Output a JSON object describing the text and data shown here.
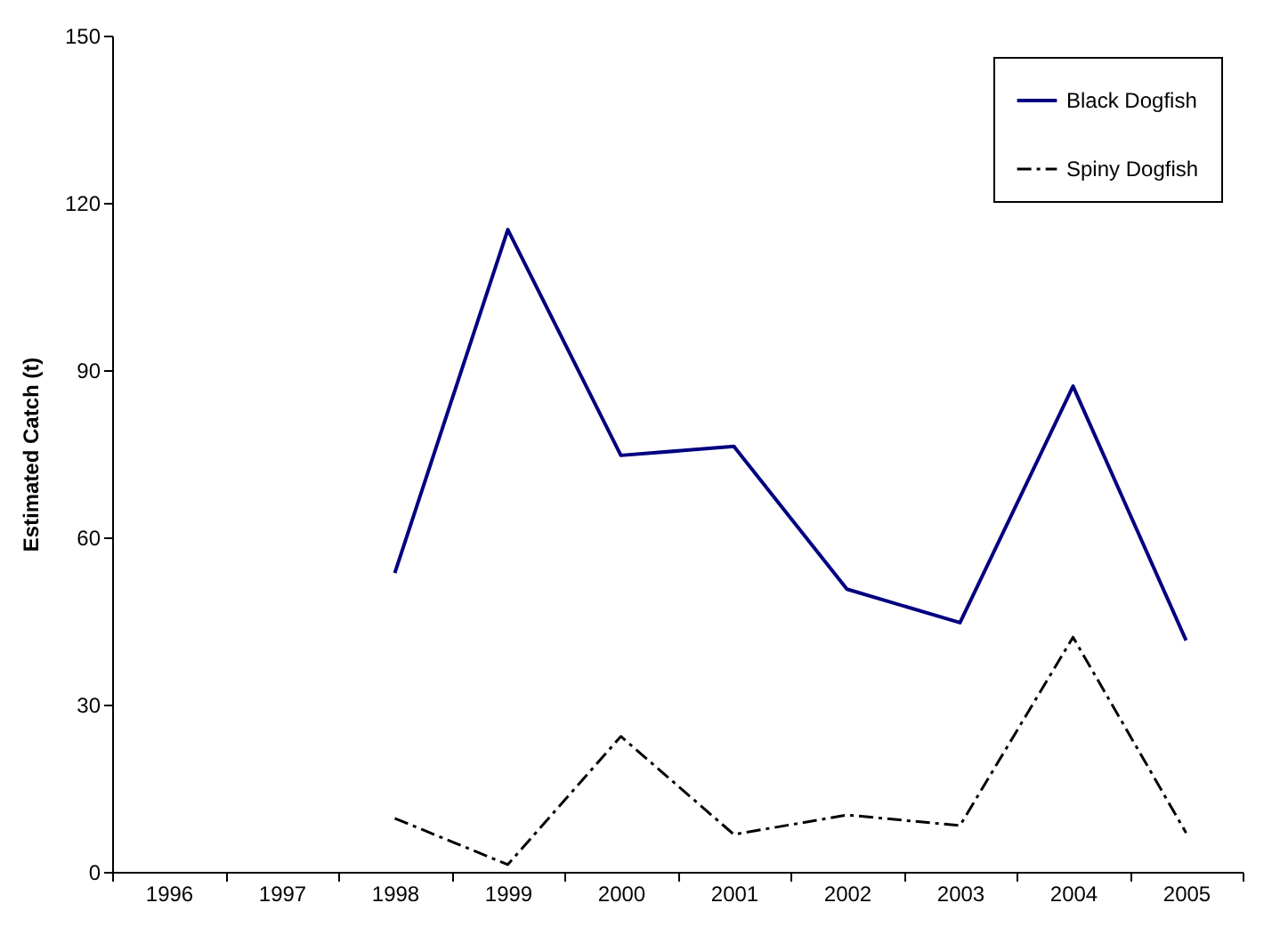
{
  "chart_data": {
    "type": "line",
    "ylabel": "Estimated Catch (t)",
    "categories": [
      "1996",
      "1997",
      "1998",
      "1999",
      "2000",
      "2001",
      "2002",
      "2003",
      "2004",
      "2005"
    ],
    "ylim": [
      0,
      150
    ],
    "yticks": [
      0,
      30,
      60,
      90,
      120,
      150
    ],
    "grid": false,
    "legend": "top right",
    "marker": "none",
    "series": [
      {
        "name": "Black Dogfish",
        "color": "#000080",
        "line_style": "solid",
        "values": [
          null,
          null,
          53.6,
          115.2,
          74.7,
          76.3,
          50.7,
          44.7,
          87.1,
          41.5
        ]
      },
      {
        "name": "Spiny Dogfish",
        "color": "#000000",
        "line_style": "dashed",
        "values": [
          null,
          null,
          9.6,
          1.3,
          24.3,
          6.7,
          10.2,
          8.3,
          42.1,
          7
        ]
      }
    ]
  }
}
